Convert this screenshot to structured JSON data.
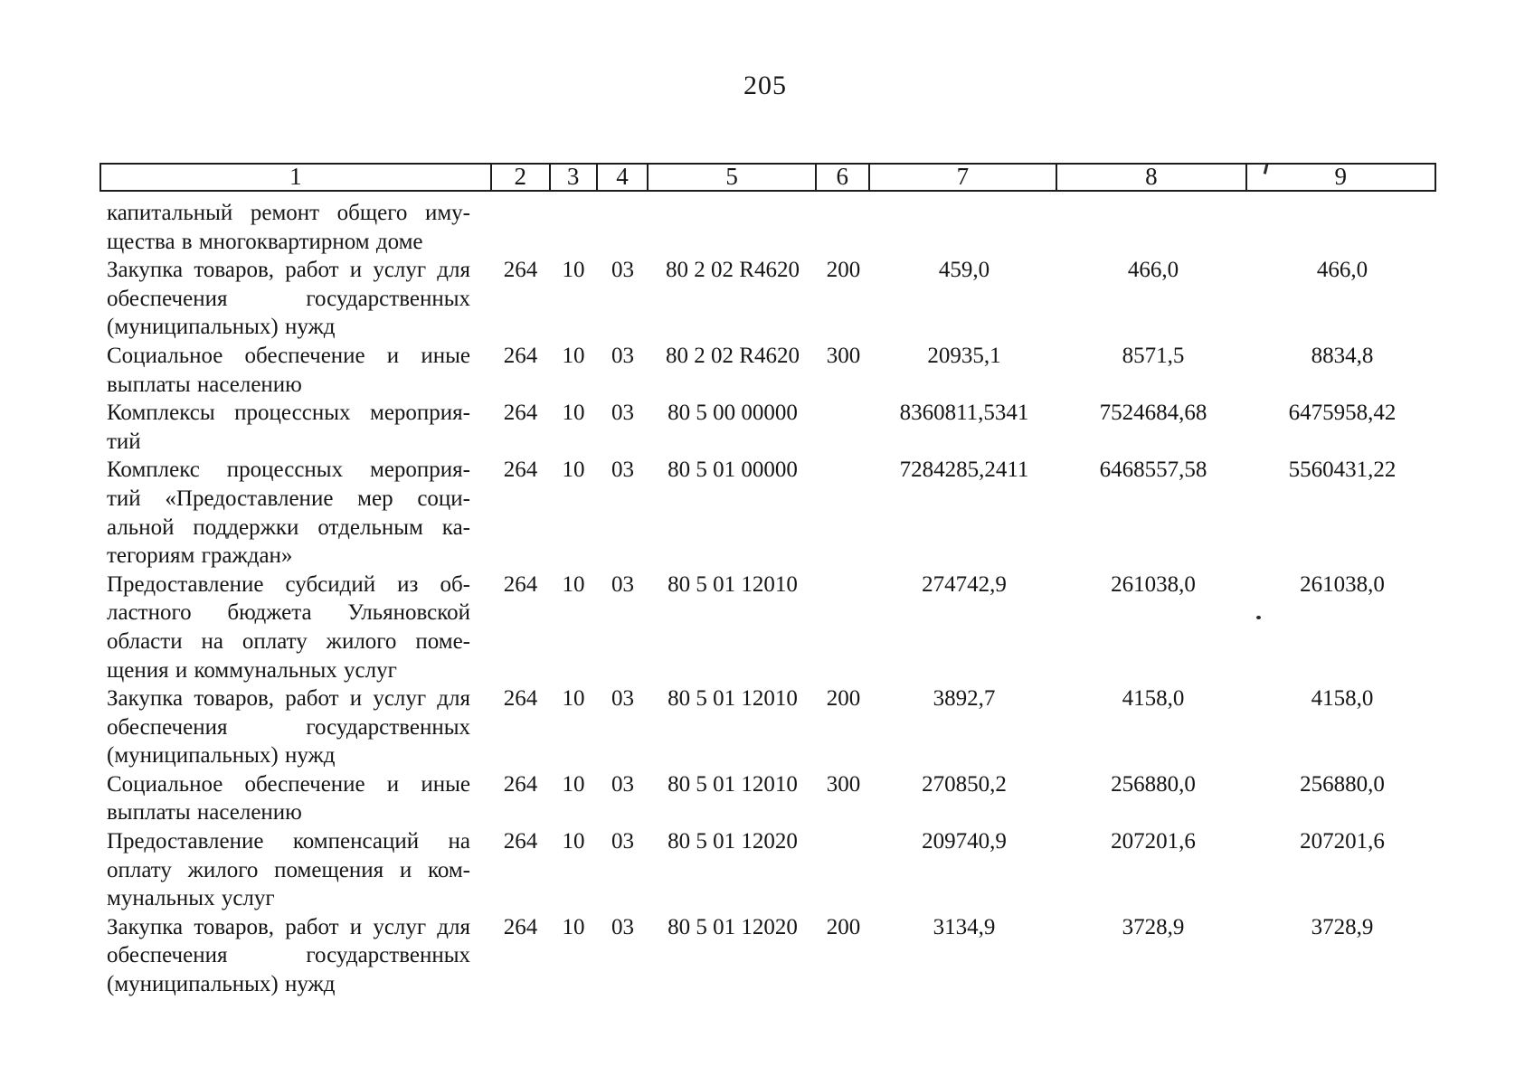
{
  "page": {
    "number": "205"
  },
  "colors": {
    "ink": "#161616",
    "paper": "#ffffff"
  },
  "table": {
    "header_cols": [
      "1",
      "2",
      "3",
      "4",
      "5",
      "6",
      "7",
      "8",
      "9"
    ],
    "rows": [
      {
        "lines": [
          "капитальный ремонт общего иму-",
          "щества в многоквартирном доме"
        ],
        "c2": "",
        "c3": "",
        "c4": "",
        "c5": "",
        "c6": "",
        "c7": "",
        "c8": "",
        "c9": ""
      },
      {
        "lines": [
          "Закупка товаров, работ и услуг для",
          "обеспечения государственных",
          "(муниципальных) нужд"
        ],
        "c2": "264",
        "c3": "10",
        "c4": "03",
        "c5": "80 2 02 R4620",
        "c6": "200",
        "c7": "459,0",
        "c8": "466,0",
        "c9": "466,0"
      },
      {
        "lines": [
          "Социальное обеспечение и иные",
          "выплаты населению"
        ],
        "c2": "264",
        "c3": "10",
        "c4": "03",
        "c5": "80 2 02 R4620",
        "c6": "300",
        "c7": "20935,1",
        "c8": "8571,5",
        "c9": "8834,8"
      },
      {
        "lines": [
          "Комплексы процессных мероприя-",
          "тий"
        ],
        "c2": "264",
        "c3": "10",
        "c4": "03",
        "c5": "80 5 00 00000",
        "c6": "",
        "c7": "8360811,5341",
        "c8": "7524684,68",
        "c9": "6475958,42"
      },
      {
        "lines": [
          "Комплекс процессных мероприя-",
          "тий «Предоставление мер соци-",
          "альной поддержки отдельным ка-",
          "тегориям граждан»"
        ],
        "c2": "264",
        "c3": "10",
        "c4": "03",
        "c5": "80 5 01 00000",
        "c6": "",
        "c7": "7284285,2411",
        "c8": "6468557,58",
        "c9": "5560431,22"
      },
      {
        "lines": [
          "Предоставление субсидий из об-",
          "ластного бюджета Ульяновской",
          "области на оплату жилого поме-",
          "щения и коммунальных услуг"
        ],
        "c2": "264",
        "c3": "10",
        "c4": "03",
        "c5": "80 5 01 12010",
        "c6": "",
        "c7": "274742,9",
        "c8": "261038,0",
        "c9": "261038,0"
      },
      {
        "lines": [
          "Закупка товаров, работ и услуг для",
          "обеспечения государственных",
          "(муниципальных) нужд"
        ],
        "c2": "264",
        "c3": "10",
        "c4": "03",
        "c5": "80 5 01 12010",
        "c6": "200",
        "c7": "3892,7",
        "c8": "4158,0",
        "c9": "4158,0"
      },
      {
        "lines": [
          "Социальное обеспечение и иные",
          "выплаты населению"
        ],
        "c2": "264",
        "c3": "10",
        "c4": "03",
        "c5": "80 5 01 12010",
        "c6": "300",
        "c7": "270850,2",
        "c8": "256880,0",
        "c9": "256880,0"
      },
      {
        "lines": [
          "Предоставление компенсаций на",
          "оплату жилого помещения и ком-",
          "мунальных услуг"
        ],
        "c2": "264",
        "c3": "10",
        "c4": "03",
        "c5": "80 5 01 12020",
        "c6": "",
        "c7": "209740,9",
        "c8": "207201,6",
        "c9": "207201,6"
      },
      {
        "lines": [
          "Закупка товаров, работ и услуг для",
          "обеспечения государственных",
          "(муниципальных) нужд"
        ],
        "c2": "264",
        "c3": "10",
        "c4": "03",
        "c5": "80 5 01 12020",
        "c6": "200",
        "c7": "3134,9",
        "c8": "3728,9",
        "c9": "3728,9"
      }
    ]
  }
}
